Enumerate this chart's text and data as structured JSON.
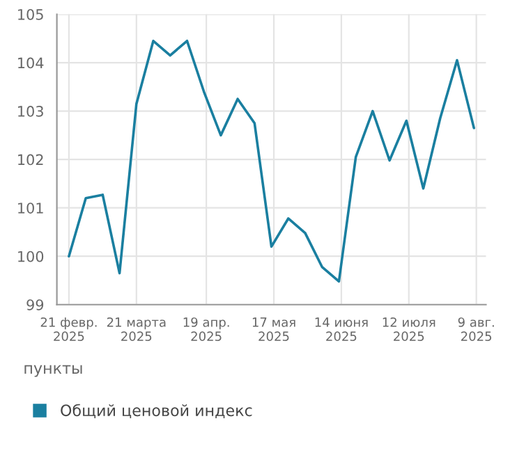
{
  "chart_data": {
    "type": "line",
    "x": [
      "2025-02-21",
      "2025-02-28",
      "2025-03-07",
      "2025-03-14",
      "2025-03-21",
      "2025-03-28",
      "2025-04-04",
      "2025-04-11",
      "2025-04-18",
      "2025-04-25",
      "2025-05-02",
      "2025-05-09",
      "2025-05-16",
      "2025-05-23",
      "2025-05-30",
      "2025-06-06",
      "2025-06-13",
      "2025-06-20",
      "2025-06-27",
      "2025-07-04",
      "2025-07-11",
      "2025-07-18",
      "2025-07-25",
      "2025-08-01",
      "2025-08-08"
    ],
    "series": [
      {
        "name": "Общий ценовой индекс",
        "color": "#1a7fa0",
        "values": [
          100.0,
          101.2,
          101.27,
          99.65,
          103.15,
          104.45,
          104.15,
          104.45,
          103.4,
          102.5,
          103.25,
          102.75,
          100.2,
          100.78,
          100.48,
          99.78,
          99.48,
          102.05,
          103.0,
          101.98,
          102.8,
          101.4,
          102.85,
          104.05,
          102.65
        ]
      }
    ],
    "xlim": [
      "2025-02-16",
      "2025-08-13"
    ],
    "xticks": [
      {
        "value": "2025-02-21",
        "label": "21 февр.\n2025"
      },
      {
        "value": "2025-03-21",
        "label": "21 марта\n2025"
      },
      {
        "value": "2025-04-19",
        "label": "19 апр.\n2025"
      },
      {
        "value": "2025-05-17",
        "label": "17 мая\n2025"
      },
      {
        "value": "2025-06-14",
        "label": "14 июня\n2025"
      },
      {
        "value": "2025-07-12",
        "label": "12 июля\n2025"
      },
      {
        "value": "2025-08-09",
        "label": "9 авг.\n2025"
      }
    ],
    "ylim": [
      99,
      105
    ],
    "yticks": [
      99,
      100,
      101,
      102,
      103,
      104,
      105
    ],
    "annotations": [
      "пункты"
    ],
    "grid": true,
    "legend": "bottom",
    "marker": "none",
    "line_style": "solid"
  }
}
